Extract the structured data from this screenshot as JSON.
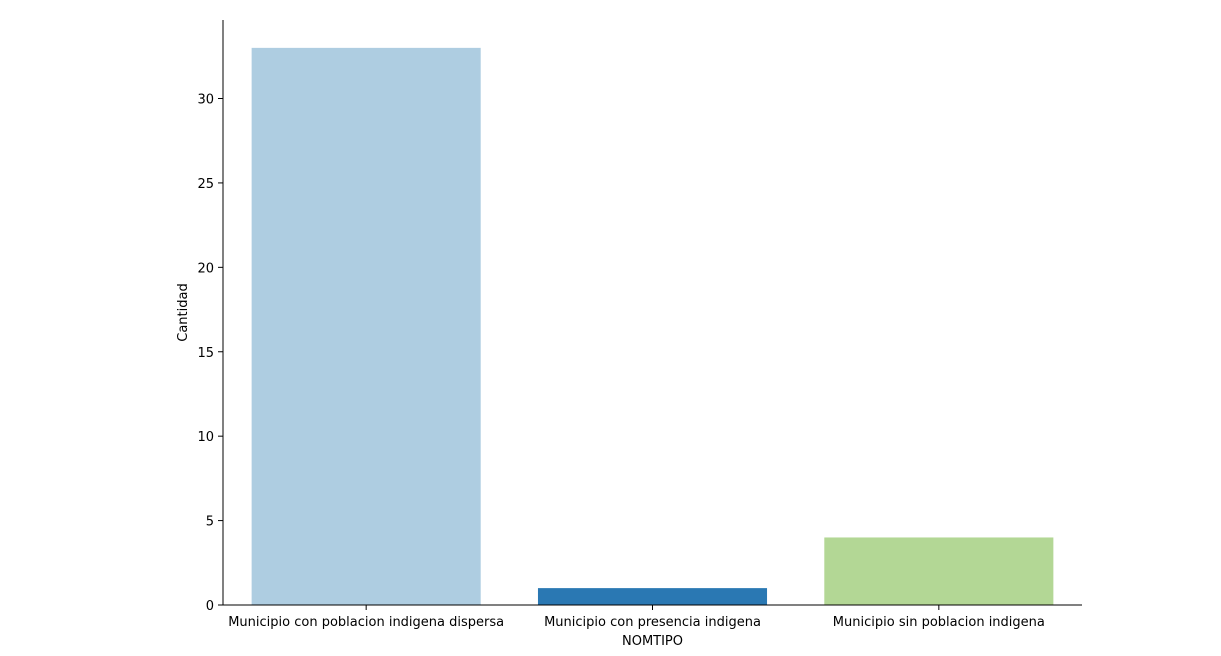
{
  "chart_data": {
    "type": "bar",
    "categories": [
      "Municipio con poblacion indigena dispersa",
      "Municipio con presencia indigena",
      "Municipio sin poblacion indigena"
    ],
    "values": [
      33,
      1,
      4
    ],
    "colors": [
      "#aecde1",
      "#2a78b3",
      "#b3d795"
    ],
    "xlabel": "NOMTIPO",
    "ylabel": "Cantidad",
    "ylim": [
      0,
      34.65
    ],
    "yticks": [
      0,
      5,
      10,
      15,
      20,
      25,
      30
    ],
    "grid": false
  }
}
